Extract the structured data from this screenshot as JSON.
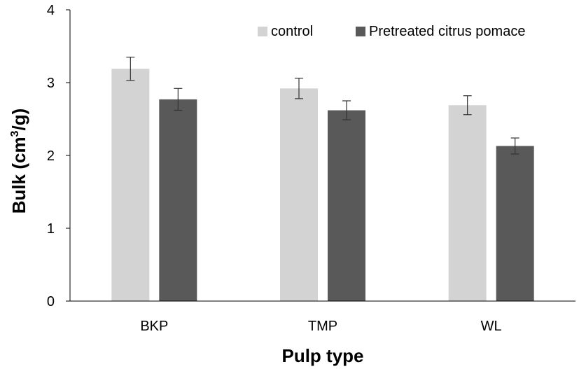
{
  "chart_data": {
    "type": "bar",
    "categories": [
      "BKP",
      "TMP",
      "WL"
    ],
    "series": [
      {
        "name": "control",
        "color": "#d3d3d3",
        "values": [
          3.19,
          2.92,
          2.69
        ],
        "errors": [
          0.16,
          0.14,
          0.13
        ]
      },
      {
        "name": "Pretreated citrus pomace",
        "color": "#595959",
        "values": [
          2.77,
          2.62,
          2.13
        ],
        "errors": [
          0.15,
          0.13,
          0.11
        ]
      }
    ],
    "xlabel": "Pulp type",
    "ylabel_main": "Bulk (cm",
    "ylabel_sup": "3",
    "ylabel_tail": "/g)",
    "ylim": [
      0,
      4
    ],
    "yticks": [
      "0",
      "1",
      "2",
      "3",
      "4"
    ],
    "grid": false,
    "legend_position": "top-right"
  }
}
